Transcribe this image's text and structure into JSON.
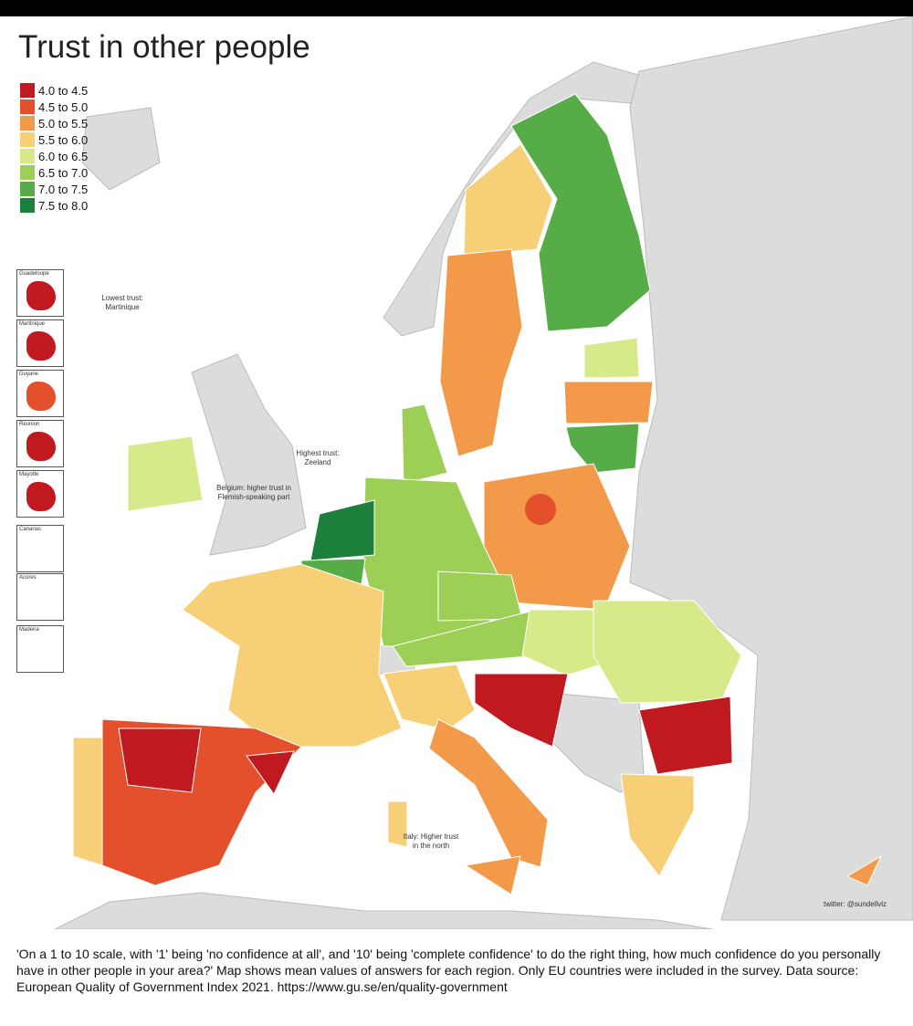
{
  "title": "Trust in other people",
  "legend": [
    {
      "label": "4.0 to 4.5",
      "color": "#c0191f"
    },
    {
      "label": "4.5 to 5.0",
      "color": "#e4502c"
    },
    {
      "label": "5.0 to 5.5",
      "color": "#f29a4a"
    },
    {
      "label": "5.5 to 6.0",
      "color": "#f7cf77"
    },
    {
      "label": "6.0 to 6.5",
      "color": "#d6ea8a"
    },
    {
      "label": "6.5 to 7.0",
      "color": "#9dcf57"
    },
    {
      "label": "7.0 to 7.5",
      "color": "#56ad47"
    },
    {
      "label": "7.5 to 8.0",
      "color": "#1c7f3b"
    }
  ],
  "insets": [
    "Guadeloupe",
    "Martinique",
    "Guyane",
    "Réunion",
    "Mayotte",
    "Canarias",
    "Acores",
    "Madeira"
  ],
  "annotations": [
    "Lowest trust: Martinique",
    "Highest trust: Zeeland",
    "Belgium: higher trust in Flemish-speaking part",
    "Italy: Higher trust in the north"
  ],
  "credit": "twitter: @sundellviz",
  "caption": "'On a 1 to 10 scale, with '1' being 'no confidence at all', and '10' being 'complete confidence' to do the right thing, how much confidence do you personally have in other people in your area?' Map shows mean values of answers for each region. Only EU countries were included in the survey. Data source: European Quality of Government Index 2021. https://www.gu.se/en/quality-government"
}
